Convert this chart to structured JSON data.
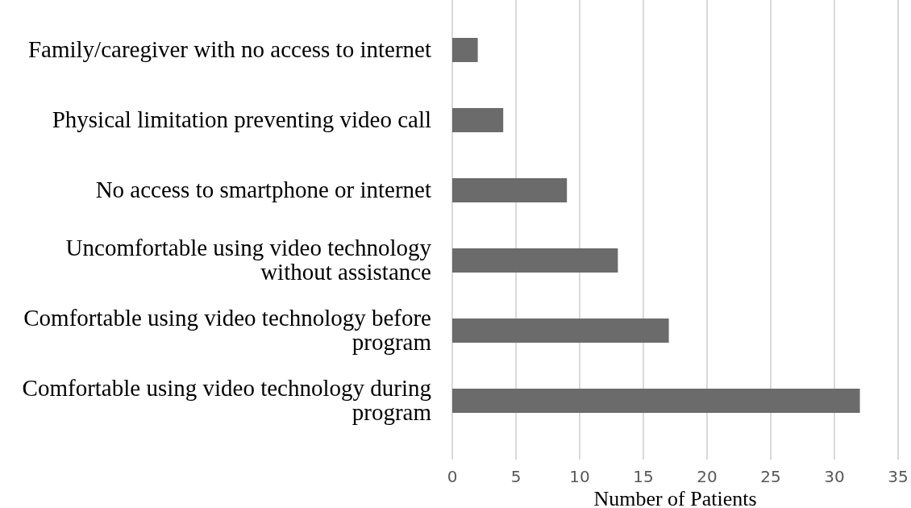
{
  "chart_data": {
    "type": "bar",
    "orientation": "horizontal",
    "xlabel": "Number of Patients",
    "categories": [
      "Family/caregiver with no access to internet",
      "Physical limitation preventing video call",
      "No access to smartphone or internet",
      "Uncomfortable using video technology without assistance",
      "Comfortable using video technology before program",
      "Comfortable using video technology during program"
    ],
    "values": [
      2,
      4,
      9,
      13,
      17,
      32
    ],
    "color": "#6b6b6b",
    "xlim": [
      0,
      35
    ],
    "xticks": [
      0,
      5,
      10,
      15,
      20,
      25,
      30,
      35
    ],
    "grid": "x"
  }
}
